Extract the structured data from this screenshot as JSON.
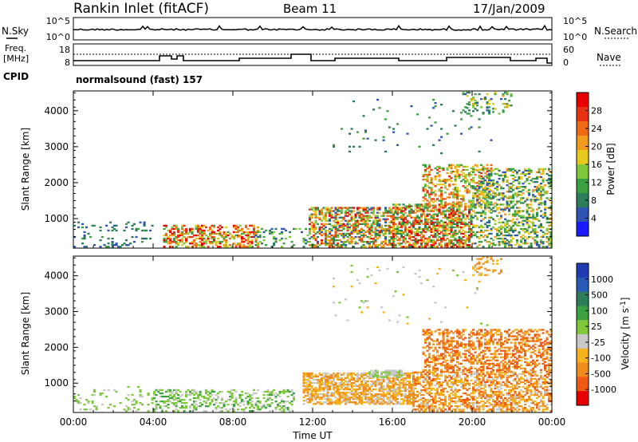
{
  "header": {
    "station": "Rankin Inlet (fitACF)",
    "beam": "Beam 11",
    "date": "17/Jan/2009"
  },
  "noise_panel": {
    "left_label": "N.Sky",
    "right_label": "N.Search",
    "ticks_left": [
      "10^5",
      "10^0"
    ],
    "ticks_right": [
      "10^5",
      "10^0"
    ]
  },
  "freq_panel": {
    "left_label_1": "Freq.",
    "left_label_2": "[MHz]",
    "right_label": "Nave",
    "ticks_left": [
      "18",
      "8"
    ],
    "ticks_right": [
      "60",
      "0"
    ]
  },
  "cpid": {
    "label": "CPID",
    "value": "normalsound (fast) 157"
  },
  "colors": {
    "power": [
      "#1a1aff",
      "#2e55b4",
      "#2e7d5a",
      "#3aa040",
      "#7fc83c",
      "#e6c81e",
      "#f09a1e",
      "#ee6a14",
      "#e83214",
      "#e60000"
    ],
    "velocity": [
      "#1f3cb4",
      "#2a5ab8",
      "#2e7d5a",
      "#3aa040",
      "#7fc83c",
      "#c8c8c8",
      "#f5b41e",
      "#f08c1e",
      "#ee5a14",
      "#e60000"
    ]
  },
  "chart_data": [
    {
      "type": "heatmap",
      "name": "power",
      "xlabel": "",
      "ylabel": "Slant Range [km]",
      "x_ticks": [
        "00:00",
        "04:00",
        "08:00",
        "12:00",
        "16:00",
        "20:00",
        "00:00"
      ],
      "y_ticks": [
        "1000",
        "2000",
        "3000",
        "4000"
      ],
      "xlim": [
        0,
        24
      ],
      "ylim": [
        180,
        4550
      ],
      "colorbar": {
        "label": "Power [dB]",
        "ticks": [
          "4",
          "8",
          "12",
          "16",
          "20",
          "24",
          "28"
        ],
        "range": [
          0,
          30
        ]
      },
      "regions": [
        {
          "t": [
            0,
            4
          ],
          "r": [
            200,
            900
          ],
          "density": 0.12,
          "level": [
            3,
            10
          ]
        },
        {
          "t": [
            4.5,
            9.2
          ],
          "r": [
            200,
            800
          ],
          "density": 0.45,
          "level": [
            10,
            30
          ]
        },
        {
          "t": [
            9,
            11.8
          ],
          "r": [
            200,
            700
          ],
          "density": 0.18,
          "level": [
            4,
            14
          ]
        },
        {
          "t": [
            11.8,
            16
          ],
          "r": [
            200,
            1300
          ],
          "density": 0.55,
          "level": [
            4,
            28
          ]
        },
        {
          "t": [
            16,
            20
          ],
          "r": [
            200,
            1400
          ],
          "density": 0.6,
          "level": [
            6,
            30
          ]
        },
        {
          "t": [
            17.5,
            21
          ],
          "r": [
            1300,
            2500
          ],
          "density": 0.35,
          "level": [
            10,
            26
          ]
        },
        {
          "t": [
            20,
            24
          ],
          "r": [
            200,
            2400
          ],
          "density": 0.4,
          "level": [
            4,
            20
          ]
        },
        {
          "t": [
            19.5,
            22
          ],
          "r": [
            3900,
            4500
          ],
          "density": 0.2,
          "level": [
            4,
            20
          ]
        },
        {
          "t": [
            13,
            21
          ],
          "r": [
            2800,
            4300
          ],
          "density": 0.02,
          "level": [
            4,
            12
          ]
        }
      ]
    },
    {
      "type": "heatmap",
      "name": "velocity",
      "xlabel": "Time UT",
      "ylabel": "Slant Range [km]",
      "x_ticks": [
        "00:00",
        "04:00",
        "08:00",
        "12:00",
        "16:00",
        "20:00",
        "00:00"
      ],
      "y_ticks": [
        "1000",
        "2000",
        "3000",
        "4000"
      ],
      "xlim": [
        0,
        24
      ],
      "ylim": [
        180,
        4550
      ],
      "colorbar": {
        "label": "Velocity [m s^-1]",
        "ticks": [
          "1000",
          "500",
          "100",
          "25",
          "-25",
          "-100",
          "-500",
          "-1000"
        ],
        "range": [
          -1000,
          1000
        ]
      },
      "regions": [
        {
          "t": [
            0,
            4
          ],
          "r": [
            200,
            900
          ],
          "density": 0.1,
          "level": [
            -50,
            150
          ]
        },
        {
          "t": [
            4,
            11
          ],
          "r": [
            200,
            800
          ],
          "density": 0.35,
          "level": [
            -100,
            300
          ]
        },
        {
          "t": [
            11.5,
            17
          ],
          "r": [
            400,
            1300
          ],
          "density": 0.65,
          "level": [
            -600,
            -80
          ]
        },
        {
          "t": [
            14.8,
            16.5
          ],
          "r": [
            1150,
            1350
          ],
          "density": 0.7,
          "level": [
            -25,
            25
          ]
        },
        {
          "t": [
            17,
            24
          ],
          "r": [
            200,
            1300
          ],
          "density": 0.55,
          "level": [
            -700,
            -100
          ]
        },
        {
          "t": [
            17.5,
            24
          ],
          "r": [
            1300,
            2500
          ],
          "density": 0.45,
          "level": [
            -800,
            -300
          ]
        },
        {
          "t": [
            20,
            21.5
          ],
          "r": [
            4000,
            4500
          ],
          "density": 0.2,
          "level": [
            -600,
            -200
          ]
        },
        {
          "t": [
            13,
            21
          ],
          "r": [
            2600,
            4300
          ],
          "density": 0.02,
          "level": [
            -300,
            100
          ]
        }
      ]
    }
  ]
}
